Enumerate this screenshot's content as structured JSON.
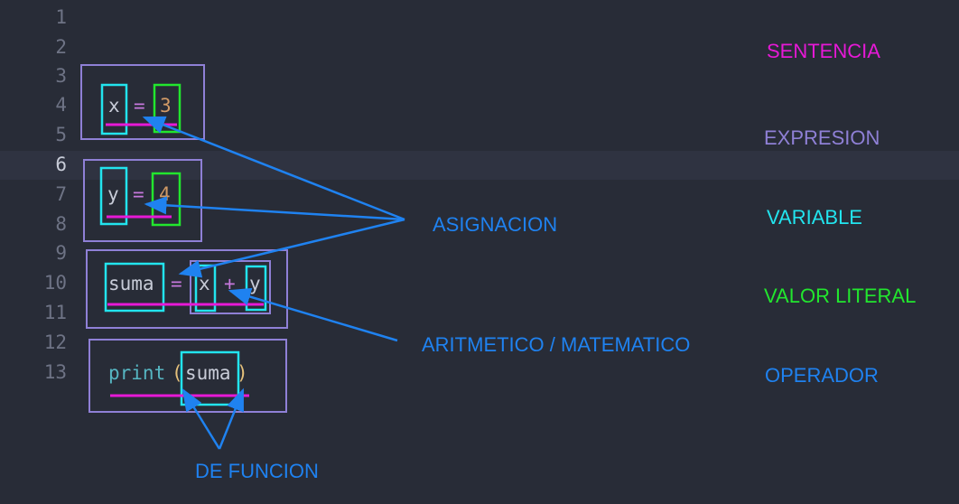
{
  "editor": {
    "line_numbers": [
      "1",
      "2",
      "3",
      "4",
      "5",
      "6",
      "7",
      "8",
      "9",
      "10",
      "11",
      "12",
      "13"
    ],
    "active_line": "6",
    "code": {
      "line4": {
        "var": "x",
        "op": "=",
        "value": "3"
      },
      "line7": {
        "var": "y",
        "op": "=",
        "value": "4"
      },
      "line10": {
        "var": "suma",
        "op": "=",
        "left": "x",
        "plus": "+",
        "right": "y"
      },
      "line13": {
        "func": "print",
        "open": "(",
        "arg": "suma",
        "close": ")"
      }
    }
  },
  "legend": {
    "sentencia": {
      "label": "SENTENCIA",
      "color": "#e619d6"
    },
    "expresion": {
      "label": "EXPRESION",
      "color": "#8f80d6"
    },
    "variable": {
      "label": "VARIABLE",
      "color": "#22e4ee"
    },
    "valor_literal": {
      "label": "VALOR LITERAL",
      "color": "#22e62e"
    },
    "operador": {
      "label": "OPERADOR",
      "color": "#1f82f0"
    }
  },
  "annotations": {
    "asignacion": "ASIGNACION",
    "aritmetico": "ARITMETICO / MATEMATICO",
    "de_funcion": "DE FUNCION"
  },
  "colors": {
    "background": "#282c37",
    "arrow": "#1f82f0"
  }
}
